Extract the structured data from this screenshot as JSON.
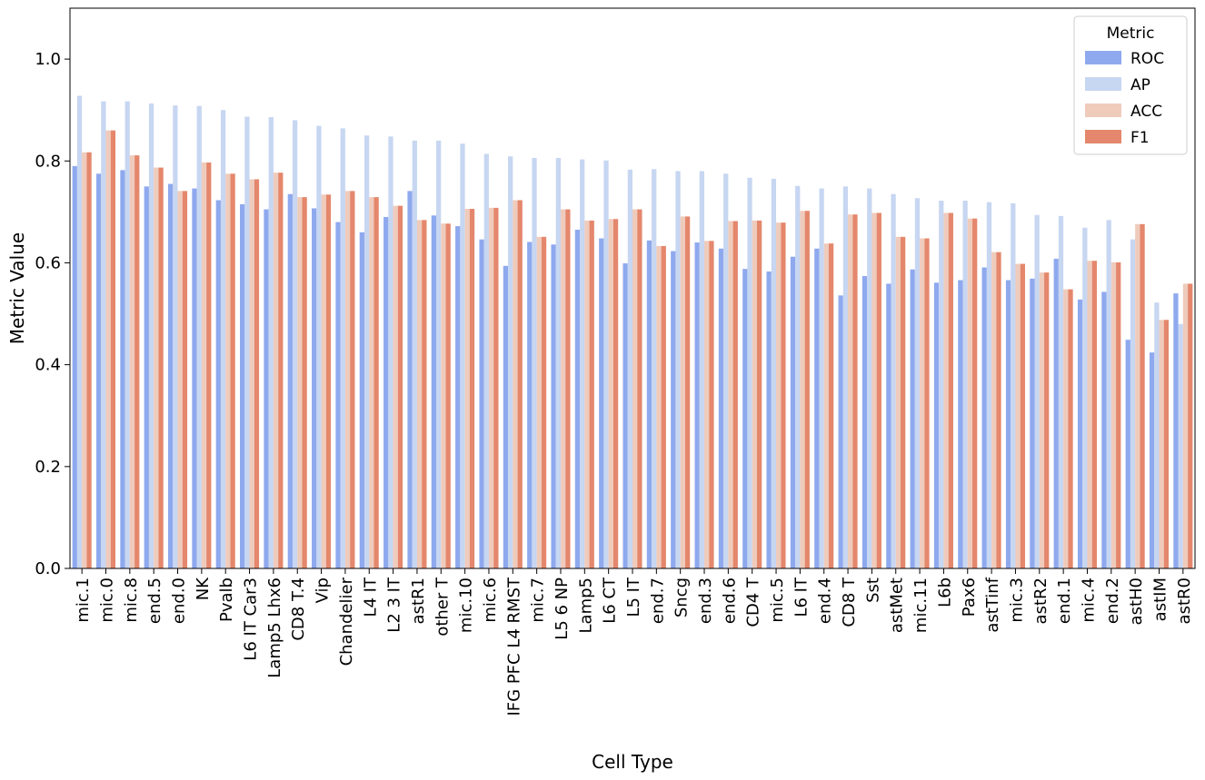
{
  "chart_data": {
    "type": "bar",
    "xlabel": "Cell Type",
    "ylabel": "Metric Value",
    "ylim": [
      0,
      1.1
    ],
    "yticks": [
      "0.0",
      "0.2",
      "0.4",
      "0.6",
      "0.8",
      "1.0"
    ],
    "grid": false,
    "legend": {
      "title": "Metric",
      "placement": "top-right"
    },
    "categories": [
      "mic.1",
      "mic.0",
      "mic.8",
      "end.5",
      "end.0",
      "NK",
      "Pvalb",
      "L6 IT Car3",
      "Lamp5 Lhx6",
      "CD8 T.4",
      "Vip",
      "Chandelier",
      "L4 IT",
      "L2 3 IT",
      "astR1",
      "other T",
      "mic.10",
      "mic.6",
      "IFG PFC L4 RMST",
      "mic.7",
      "L5 6 NP",
      "Lamp5",
      "L6 CT",
      "L5 IT",
      "end.7",
      "Sncg",
      "end.3",
      "end.6",
      "CD4 T",
      "mic.5",
      "L6 IT",
      "end.4",
      "CD8 T",
      "Sst",
      "astMet",
      "mic.11",
      "L6b",
      "Pax6",
      "astTinf",
      "mic.3",
      "astR2",
      "end.1",
      "mic.4",
      "end.2",
      "astH0",
      "astIM",
      "astR0"
    ],
    "series": [
      {
        "name": "ROC",
        "color": "#8fa9ee",
        "values": [
          0.79,
          0.775,
          0.782,
          0.75,
          0.755,
          0.746,
          0.723,
          0.715,
          0.705,
          0.735,
          0.707,
          0.68,
          0.66,
          0.69,
          0.741,
          0.693,
          0.672,
          0.646,
          0.594,
          0.641,
          0.636,
          0.665,
          0.648,
          0.599,
          0.644,
          0.623,
          0.64,
          0.628,
          0.588,
          0.583,
          0.612,
          0.628,
          0.536,
          0.574,
          0.559,
          0.587,
          0.561,
          0.566,
          0.591,
          0.566,
          0.569,
          0.608,
          0.528,
          0.543,
          0.449,
          0.424,
          0.54
        ]
      },
      {
        "name": "AP",
        "color": "#c7d6f1",
        "values": [
          0.928,
          0.917,
          0.917,
          0.913,
          0.909,
          0.908,
          0.9,
          0.887,
          0.886,
          0.88,
          0.869,
          0.864,
          0.85,
          0.848,
          0.84,
          0.84,
          0.834,
          0.814,
          0.809,
          0.806,
          0.806,
          0.803,
          0.801,
          0.783,
          0.784,
          0.78,
          0.78,
          0.775,
          0.767,
          0.765,
          0.751,
          0.746,
          0.75,
          0.746,
          0.735,
          0.727,
          0.722,
          0.722,
          0.719,
          0.717,
          0.694,
          0.692,
          0.669,
          0.684,
          0.646,
          0.522,
          0.48
        ]
      },
      {
        "name": "ACC",
        "color": "#efcbbc",
        "values": [
          0.817,
          0.86,
          0.811,
          0.787,
          0.741,
          0.797,
          0.775,
          0.764,
          0.777,
          0.729,
          0.734,
          0.741,
          0.729,
          0.712,
          0.684,
          0.677,
          0.706,
          0.708,
          0.723,
          0.651,
          0.705,
          0.683,
          0.686,
          0.705,
          0.633,
          0.691,
          0.643,
          0.682,
          0.683,
          0.679,
          0.702,
          0.638,
          0.695,
          0.698,
          0.651,
          0.648,
          0.698,
          0.687,
          0.621,
          0.598,
          0.581,
          0.548,
          0.604,
          0.601,
          0.676,
          0.488,
          0.559
        ]
      },
      {
        "name": "F1",
        "color": "#e4876c",
        "values": [
          0.817,
          0.86,
          0.811,
          0.787,
          0.741,
          0.797,
          0.775,
          0.764,
          0.777,
          0.729,
          0.734,
          0.741,
          0.729,
          0.712,
          0.684,
          0.677,
          0.706,
          0.708,
          0.723,
          0.651,
          0.705,
          0.683,
          0.686,
          0.705,
          0.633,
          0.691,
          0.643,
          0.682,
          0.683,
          0.679,
          0.702,
          0.638,
          0.695,
          0.698,
          0.651,
          0.648,
          0.698,
          0.687,
          0.621,
          0.598,
          0.581,
          0.548,
          0.604,
          0.601,
          0.676,
          0.488,
          0.559
        ]
      }
    ]
  }
}
